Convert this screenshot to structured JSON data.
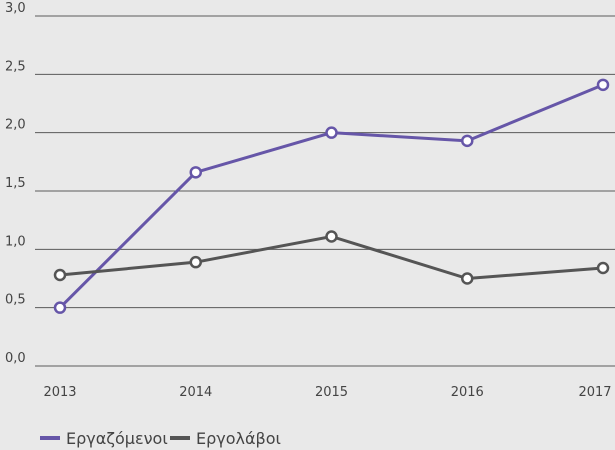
{
  "chart_data": {
    "type": "line",
    "categories": [
      "2013",
      "2014",
      "2015",
      "2016",
      "2017"
    ],
    "series": [
      {
        "name": "Εργαζόμενοι",
        "color": "#6656a8",
        "values": [
          0.5,
          1.66,
          2.0,
          1.93,
          2.41
        ]
      },
      {
        "name": "Εργολάβοι",
        "color": "#555555",
        "values": [
          0.78,
          0.89,
          1.11,
          0.75,
          0.84
        ]
      }
    ],
    "ylim": [
      0,
      3
    ],
    "yticks": [
      {
        "value": 0,
        "label": "0,0"
      },
      {
        "value": 0.5,
        "label": "0,5"
      },
      {
        "value": 1,
        "label": "1,0"
      },
      {
        "value": 1.5,
        "label": "1,5"
      },
      {
        "value": 2,
        "label": "2,0"
      },
      {
        "value": 2.5,
        "label": "2,5"
      },
      {
        "value": 3,
        "label": "3,0"
      }
    ],
    "grid": true
  }
}
